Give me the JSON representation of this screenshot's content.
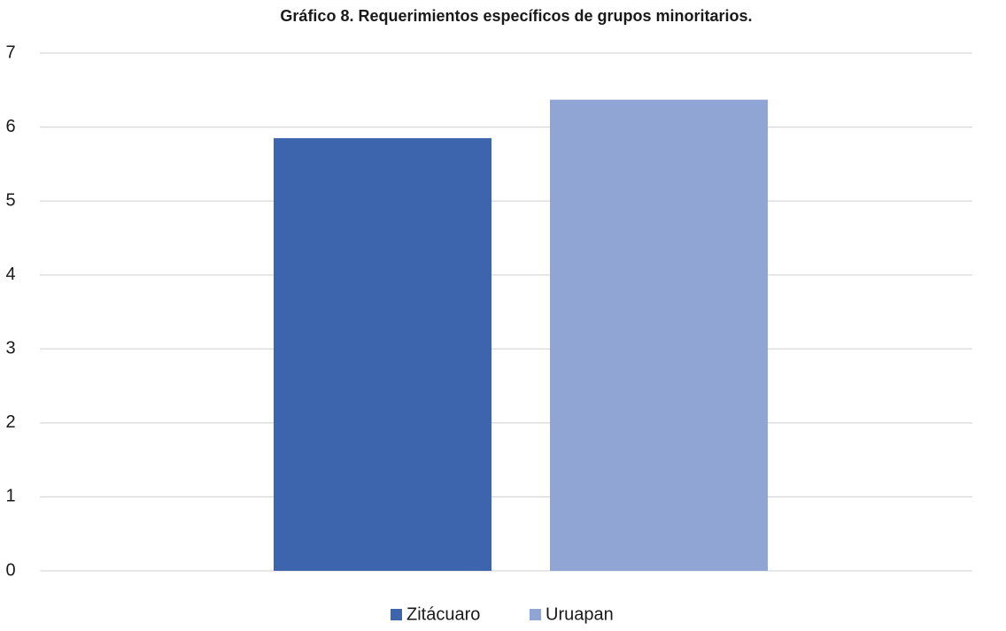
{
  "chart_data": {
    "type": "bar",
    "title": "Gráfico 8. Requerimientos específicos de grupos minoritarios.",
    "categories": [
      null
    ],
    "series": [
      {
        "name": "Zitácuaro",
        "color": "#3d65ae",
        "values": [
          5.85
        ]
      },
      {
        "name": "Uruapan",
        "color": "#91a5d5",
        "values": [
          6.37
        ]
      }
    ],
    "ylim": [
      0,
      7
    ],
    "yticks": [
      0,
      1,
      2,
      3,
      4,
      5,
      6,
      7
    ],
    "grid": true,
    "legend": "bottom"
  }
}
